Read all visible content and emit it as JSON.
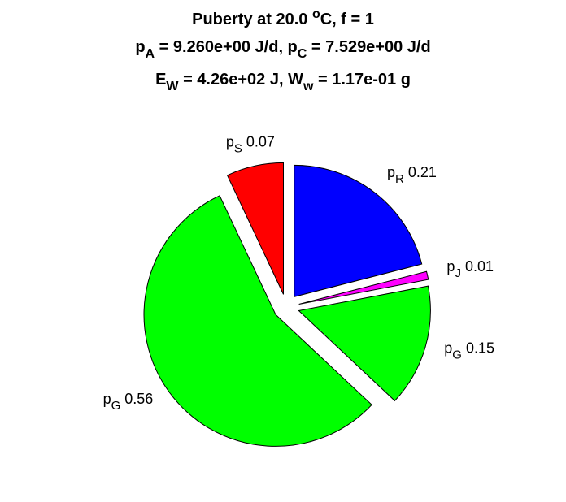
{
  "chart_data": {
    "type": "pie",
    "title": [
      [
        {
          "text": "Puberty at 20.0 "
        },
        {
          "text": "o",
          "sup": true
        },
        {
          "text": "C, f = 1"
        }
      ],
      [
        {
          "text": "p"
        },
        {
          "text": "A",
          "sub": true
        },
        {
          "text": " = 9.260e+00 J/d,  p"
        },
        {
          "text": "C",
          "sub": true
        },
        {
          "text": " = 7.529e+00 J/d"
        }
      ],
      [
        {
          "text": "E"
        },
        {
          "text": "W",
          "sub": true
        },
        {
          "text": " = 4.26e+02 J, W"
        },
        {
          "text": "w",
          "sub": true
        },
        {
          "text": " = 1.17e-01 g"
        }
      ]
    ],
    "labels": [
      {
        "name": "p",
        "sub": "R"
      },
      {
        "name": "p",
        "sub": "J"
      },
      {
        "name": "p",
        "sub": "G"
      },
      {
        "name": "p",
        "sub": "G"
      },
      {
        "name": "p",
        "sub": "S"
      }
    ],
    "values": [
      0.21,
      0.01,
      0.15,
      0.56,
      0.07
    ],
    "colors": [
      "#0000ff",
      "#ff00ff",
      "#00ff00",
      "#00ff00",
      "#ff0000"
    ],
    "explode": true,
    "direction": "clockwise"
  }
}
